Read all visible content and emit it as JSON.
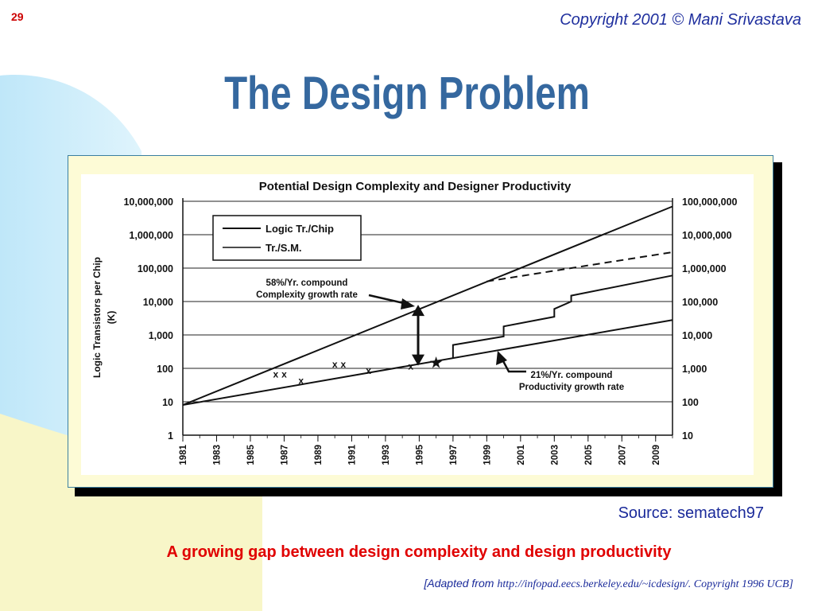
{
  "slide_number": "29",
  "copyright": "Copyright 2001 © Mani Srivastava",
  "title": "The Design Problem",
  "source": "Source: sematech97",
  "tagline": "A growing gap between design complexity and design productivity",
  "adapted_prefix": "[Adapted from ",
  "adapted_rest": "http://infopad.eecs.berkeley.edu/~icdesign/. Copyright 1996 UCB]",
  "colors": {
    "title": "#35689f",
    "tagline": "#e00000",
    "copyright": "#1f2f9e",
    "frame_bg": "#fdfbd6"
  },
  "chart_data": {
    "type": "line",
    "title": "Potential Design Complexity and Designer Productivity",
    "ylabel": "Logic Transistors per Chip (K)",
    "y_scale": "log",
    "ylim": [
      1,
      10000000
    ],
    "y_ticks": [
      "10,000,000",
      "1,000,000",
      "100,000",
      "10,000",
      "1,000",
      "100",
      "10",
      "1"
    ],
    "y_tick_values": [
      10000000,
      1000000,
      100000,
      10000,
      1000,
      100,
      10,
      1
    ],
    "right_ticks": [
      "100,000,000",
      "10,000,000",
      "1,000,000",
      "100,000",
      "10,000",
      "1,000",
      "100",
      "10"
    ],
    "right_tick_values": [
      100000000,
      10000000,
      1000000,
      100000,
      10000,
      1000,
      100,
      10
    ],
    "x_ticks": [
      "1981",
      "1983",
      "1985",
      "1987",
      "1989",
      "1991",
      "1993",
      "1995",
      "1997",
      "1999",
      "2001",
      "2003",
      "2005",
      "2007",
      "2009"
    ],
    "xlim": [
      1981,
      2010
    ],
    "legend": [
      "Logic Tr./Chip",
      "Tr./S.M."
    ],
    "legend_position": "top-left",
    "grid": true,
    "series": [
      {
        "name": "Logic Tr./Chip",
        "x": [
          1981,
          2010
        ],
        "y": [
          8,
          7000000
        ],
        "style": "solid"
      },
      {
        "name": "Tr./S.M.",
        "x": [
          1981,
          2010
        ],
        "y": [
          8,
          2800
        ],
        "style": "solid"
      },
      {
        "x": [
          1999,
          2010
        ],
        "y": [
          40000,
          300000
        ],
        "style": "dashed"
      },
      {
        "x": [
          1997,
          1997,
          2000,
          2000,
          2003,
          2003,
          2004,
          2004,
          2010
        ],
        "y": [
          200,
          500,
          900,
          1800,
          3500,
          6000,
          10000,
          15000,
          60000
        ],
        "style": "solid"
      }
    ],
    "markers": {
      "x_points": [
        [
          1986.5,
          70
        ],
        [
          1987,
          70
        ],
        [
          1988,
          45
        ],
        [
          1990,
          140
        ],
        [
          1990.5,
          140
        ],
        [
          1992,
          90
        ],
        [
          1994.5,
          120
        ]
      ],
      "star": [
        1996,
        150
      ]
    },
    "annotations": [
      {
        "text": [
          "58%/Yr. compound",
          "Complexity growth rate"
        ]
      },
      {
        "text": [
          "21%/Yr. compound",
          "Productivity growth rate"
        ]
      }
    ]
  }
}
